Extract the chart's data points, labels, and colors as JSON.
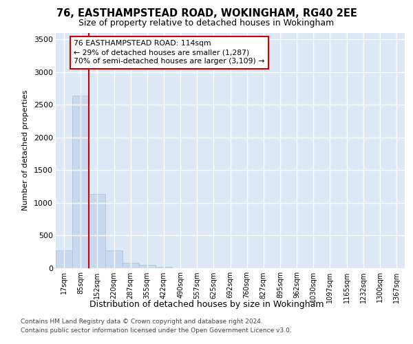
{
  "title_line1": "76, EASTHAMPSTEAD ROAD, WOKINGHAM, RG40 2EE",
  "title_line2": "Size of property relative to detached houses in Wokingham",
  "xlabel": "Distribution of detached houses by size in Wokingham",
  "ylabel": "Number of detached properties",
  "bar_color": "#c8d8ee",
  "bar_edge_color": "#b0c4de",
  "fig_bg_color": "#ffffff",
  "plot_bg_color": "#dce8f5",
  "grid_color": "#ffffff",
  "redline_color": "#cc0000",
  "annotation_text_line1": "76 EASTHAMPSTEAD ROAD: 114sqm",
  "annotation_text_line2": "← 29% of detached houses are smaller (1,287)",
  "annotation_text_line3": "70% of semi-detached houses are larger (3,109) →",
  "categories": [
    "17sqm",
    "85sqm",
    "152sqm",
    "220sqm",
    "287sqm",
    "355sqm",
    "422sqm",
    "490sqm",
    "557sqm",
    "625sqm",
    "692sqm",
    "760sqm",
    "827sqm",
    "895sqm",
    "962sqm",
    "1030sqm",
    "1097sqm",
    "1165sqm",
    "1232sqm",
    "1300sqm",
    "1367sqm"
  ],
  "values": [
    270,
    2640,
    1140,
    270,
    80,
    50,
    20,
    5,
    0,
    0,
    0,
    0,
    0,
    0,
    0,
    0,
    0,
    0,
    0,
    0,
    0
  ],
  "redline_x": 1.5,
  "ylim": [
    0,
    3600
  ],
  "yticks": [
    0,
    500,
    1000,
    1500,
    2000,
    2500,
    3000,
    3500
  ],
  "footnote1": "Contains HM Land Registry data © Crown copyright and database right 2024.",
  "footnote2": "Contains public sector information licensed under the Open Government Licence v3.0."
}
